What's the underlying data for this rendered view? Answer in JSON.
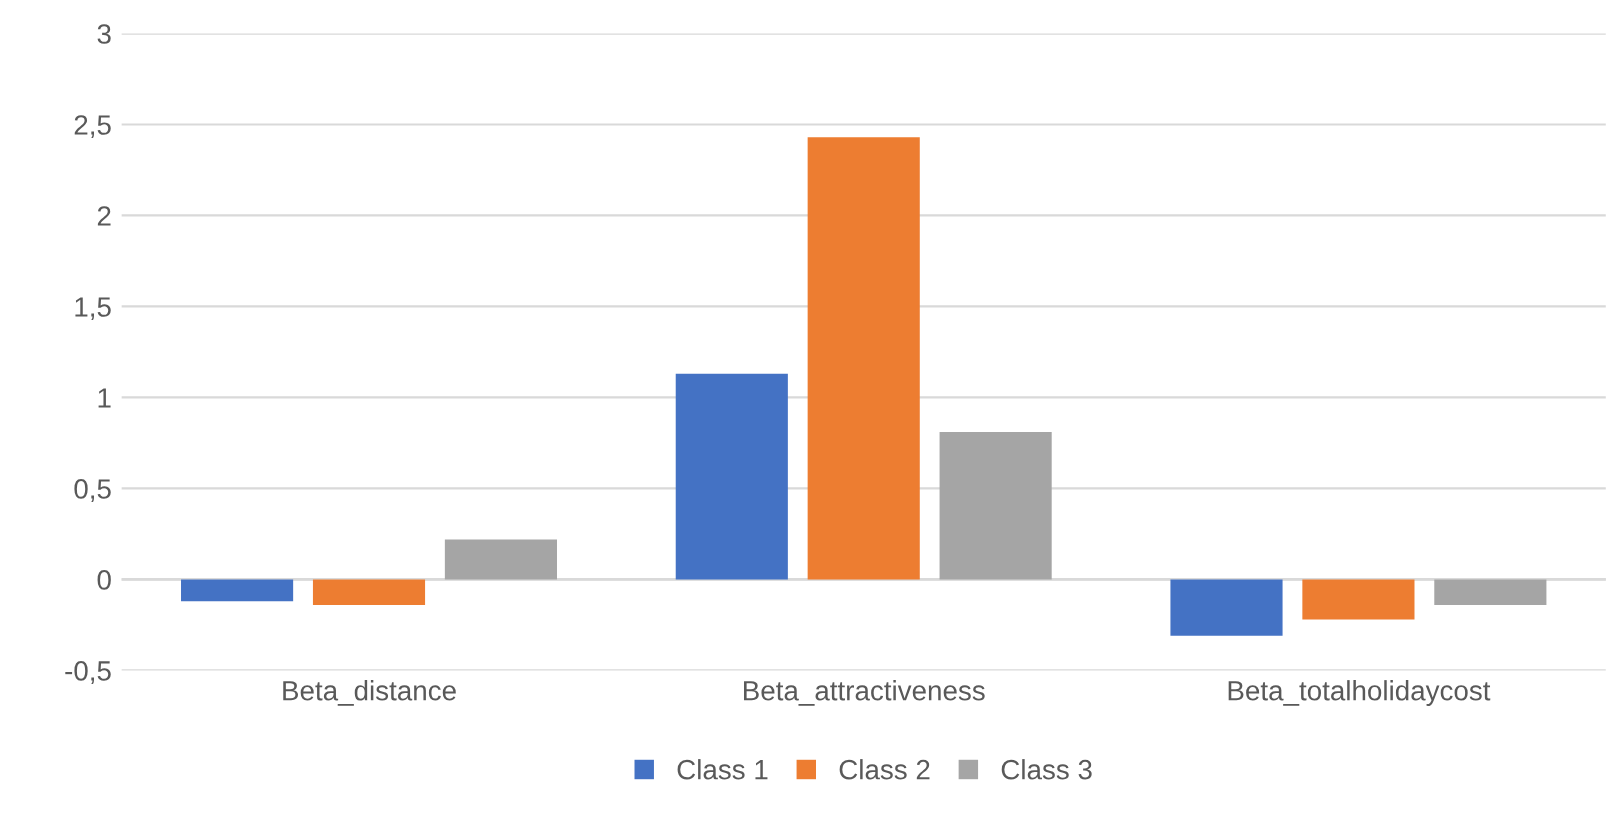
{
  "chart_data": {
    "type": "bar",
    "categories": [
      "Beta_distance",
      "Beta_attractiveness",
      "Beta_totalholidaycost"
    ],
    "series": [
      {
        "name": "Class 1",
        "color": "#4472c4",
        "values": [
          -0.12,
          1.13,
          -0.31
        ]
      },
      {
        "name": "Class 2",
        "color": "#ed7d31",
        "values": [
          -0.14,
          2.43,
          -0.22
        ]
      },
      {
        "name": "Class 3",
        "color": "#a5a5a5",
        "values": [
          0.22,
          0.81,
          -0.14
        ]
      }
    ],
    "ylim": [
      -0.5,
      3
    ],
    "yticks": [
      {
        "value": -0.5,
        "label": "-0,5"
      },
      0,
      {
        "value": 0.5,
        "label": "0,5"
      },
      1,
      {
        "value": 1.5,
        "label": "1,5"
      },
      2,
      {
        "value": 2.5,
        "label": "2,5"
      },
      3
    ],
    "grid": "y",
    "legend": "bottom"
  }
}
